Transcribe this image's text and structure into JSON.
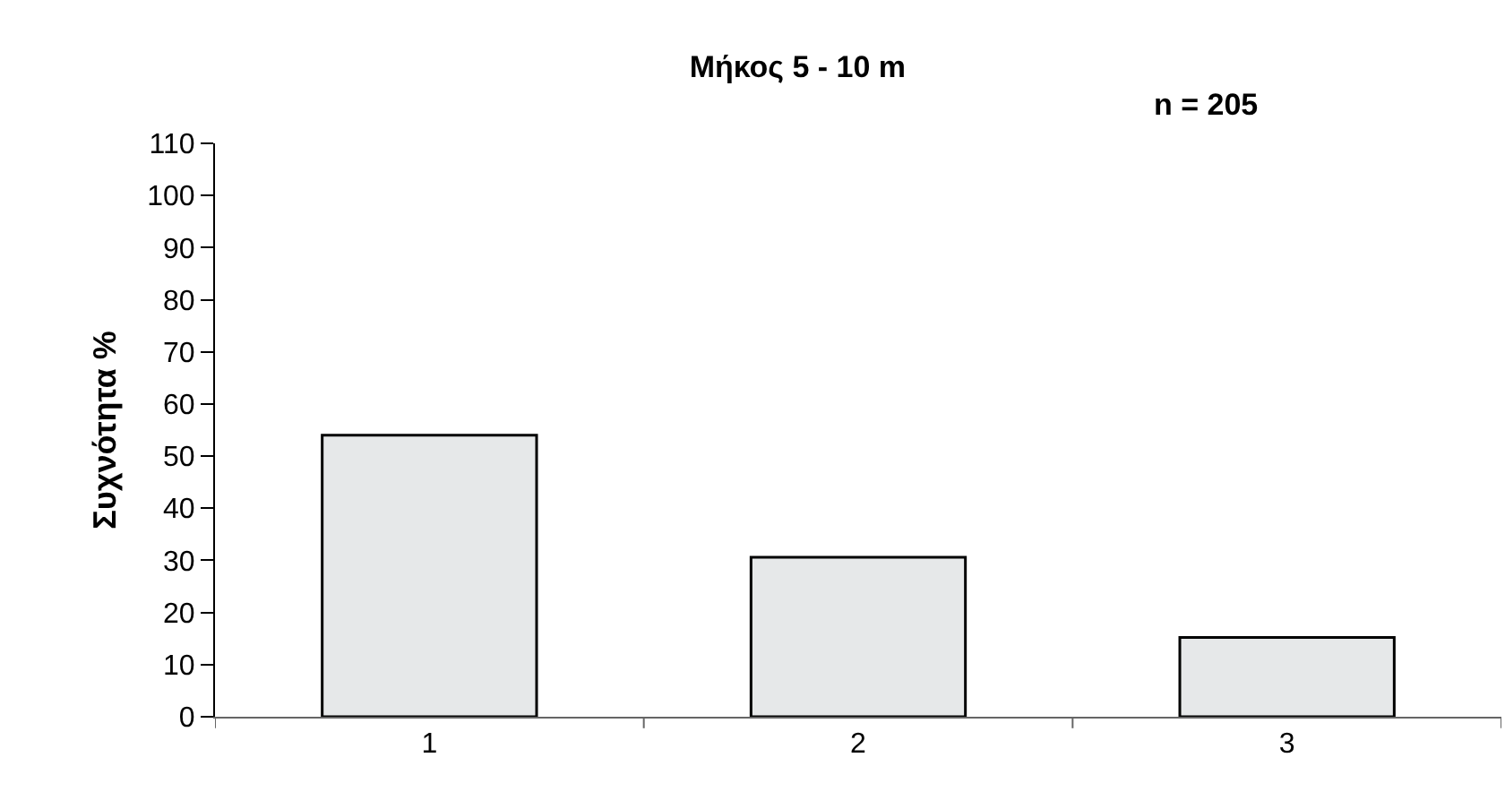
{
  "chart_data": {
    "type": "bar",
    "title": "Μήκος 5 - 10 m",
    "ylabel": "Συχνότητα %",
    "annotations": [
      "n = 205"
    ],
    "categories": [
      "1",
      "2",
      "3"
    ],
    "values": [
      54,
      30.6,
      15.2
    ],
    "color": "#e6e8e9",
    "ylim": [
      0,
      110
    ],
    "yticks": [
      0,
      10,
      20,
      30,
      40,
      50,
      60,
      70,
      80,
      90,
      100,
      110
    ]
  }
}
